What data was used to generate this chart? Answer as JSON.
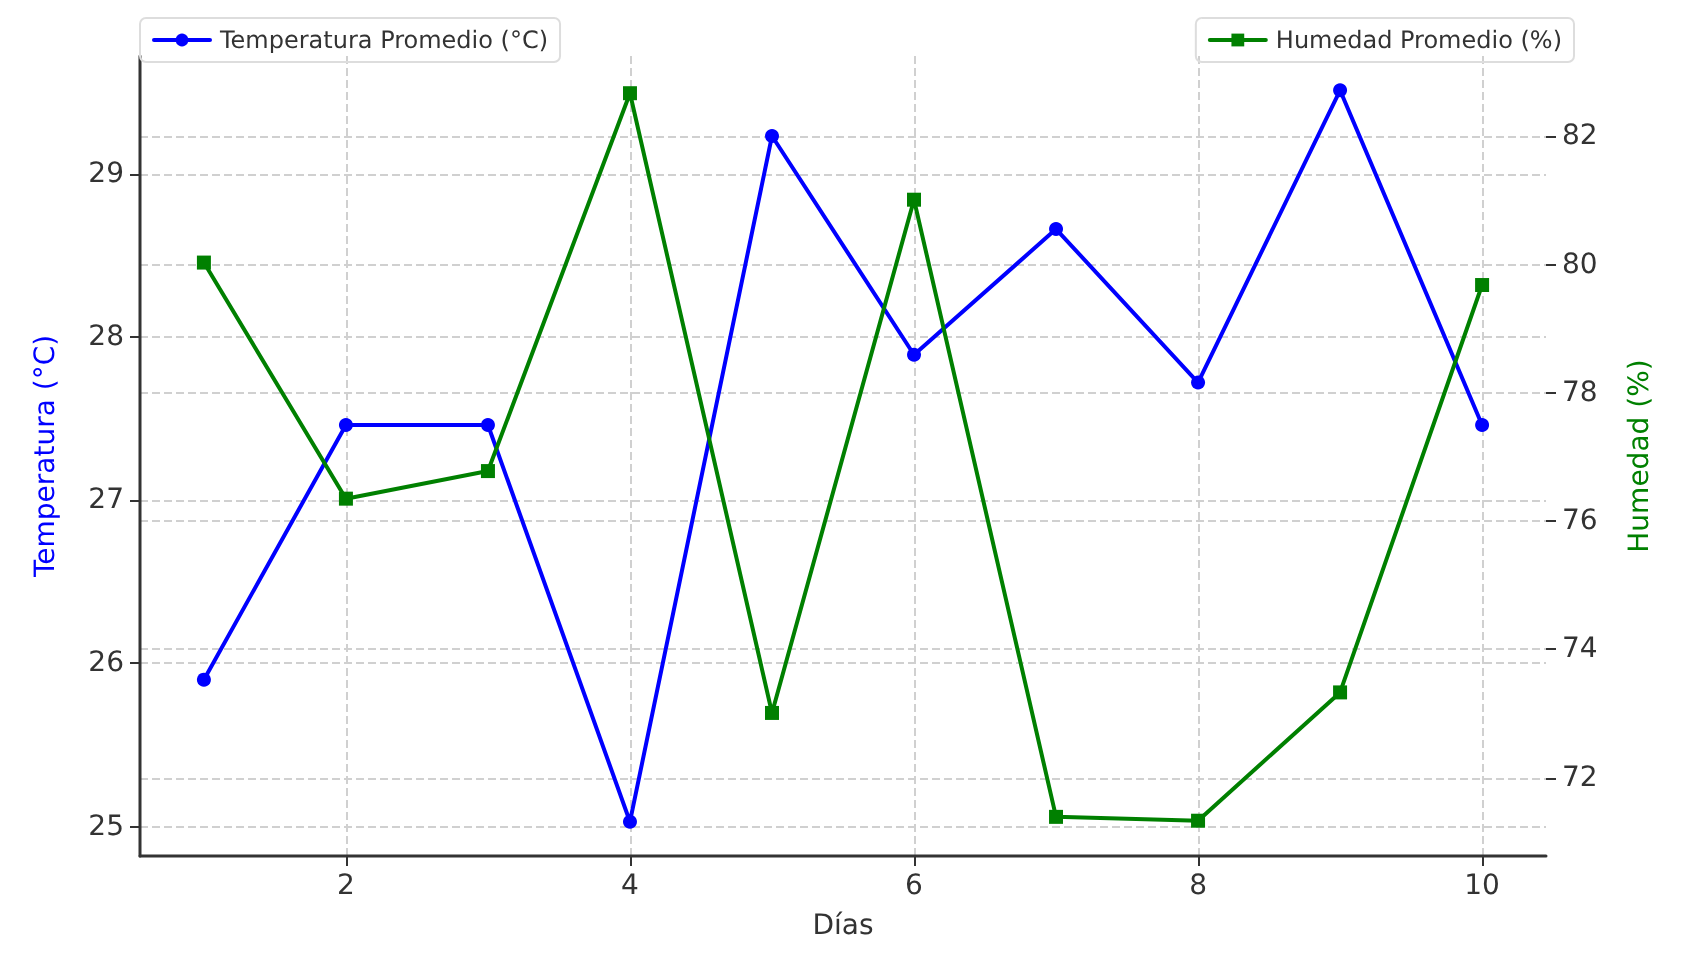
{
  "chart_data": {
    "type": "line",
    "xlabel": "Días",
    "ylabel": "Temperatura (°C)",
    "y2label": "Humedad (%)",
    "x": [
      1,
      2,
      3,
      4,
      5,
      6,
      7,
      8,
      9,
      10
    ],
    "series": [
      {
        "name": "Temperatura Promedio (°C)",
        "color": "#0000ff",
        "marker": "circle",
        "values": [
          25.9,
          27.46,
          27.46,
          25.03,
          29.23,
          27.89,
          28.66,
          27.72,
          29.51,
          27.46
        ]
      },
      {
        "name": "Humedad Promedio (%)",
        "color": "#008000",
        "marker": "square",
        "axis": "y2",
        "values": [
          80.03,
          76.35,
          76.78,
          82.67,
          73.01,
          81.01,
          71.39,
          71.33,
          73.33,
          79.68
        ]
      }
    ],
    "xlim": [
      0.55,
      10.45
    ],
    "xticks": [
      2,
      4,
      6,
      8,
      10
    ],
    "ylim": [
      24.82,
      29.72
    ],
    "yticks": [
      25,
      26,
      27,
      28,
      29
    ],
    "y2lim": [
      70.78,
      83.25
    ],
    "y2ticks": [
      72,
      74,
      76,
      78,
      80,
      82
    ],
    "grid": true,
    "legend": "top left"
  }
}
